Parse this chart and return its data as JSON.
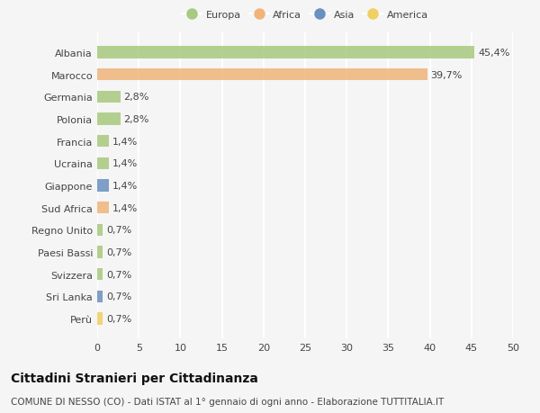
{
  "countries": [
    "Albania",
    "Marocco",
    "Germania",
    "Polonia",
    "Francia",
    "Ucraina",
    "Giappone",
    "Sud Africa",
    "Regno Unito",
    "Paesi Bassi",
    "Svizzera",
    "Sri Lanka",
    "Perù"
  ],
  "values": [
    45.4,
    39.7,
    2.8,
    2.8,
    1.4,
    1.4,
    1.4,
    1.4,
    0.7,
    0.7,
    0.7,
    0.7,
    0.7
  ],
  "labels": [
    "45,4%",
    "39,7%",
    "2,8%",
    "2,8%",
    "1,4%",
    "1,4%",
    "1,4%",
    "1,4%",
    "0,7%",
    "0,7%",
    "0,7%",
    "0,7%",
    "0,7%"
  ],
  "continents": [
    "Europa",
    "Africa",
    "Europa",
    "Europa",
    "Europa",
    "Europa",
    "Asia",
    "Africa",
    "Europa",
    "Europa",
    "Europa",
    "Asia",
    "America"
  ],
  "continent_colors": {
    "Europa": "#a8c97f",
    "Africa": "#f0b47a",
    "Asia": "#6a8fc0",
    "America": "#f0d060"
  },
  "legend_order": [
    "Europa",
    "Africa",
    "Asia",
    "America"
  ],
  "xlim": [
    0,
    50
  ],
  "xticks": [
    0,
    5,
    10,
    15,
    20,
    25,
    30,
    35,
    40,
    45,
    50
  ],
  "title": "Cittadini Stranieri per Cittadinanza",
  "subtitle": "COMUNE DI NESSO (CO) - Dati ISTAT al 1° gennaio di ogni anno - Elaborazione TUTTITALIA.IT",
  "background_color": "#f5f5f5",
  "grid_color": "#ffffff",
  "bar_height": 0.55,
  "label_fontsize": 8,
  "tick_fontsize": 8,
  "title_fontsize": 10,
  "subtitle_fontsize": 7.5
}
